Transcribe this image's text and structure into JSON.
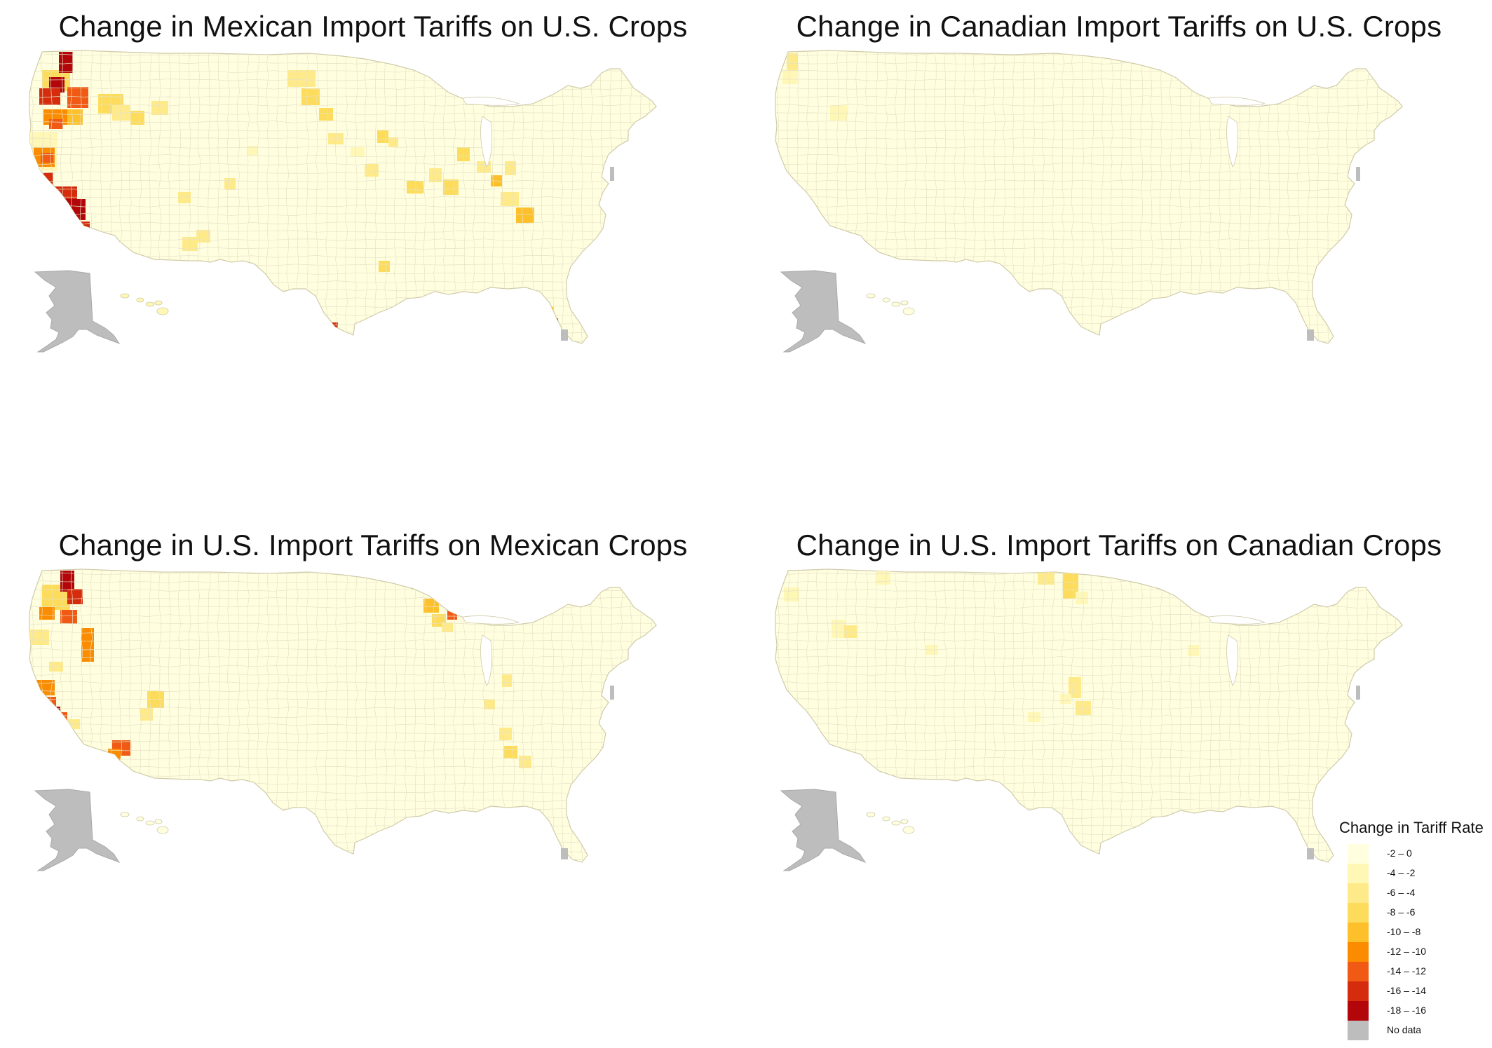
{
  "maps": [
    {
      "title": "Change in Mexican Import Tariffs on U.S. Crops"
    },
    {
      "title": "Change in Canadian Import Tariffs on U.S. Crops"
    },
    {
      "title": "Change in U.S. Import Tariffs on Mexican Crops"
    },
    {
      "title": "Change in U.S. Import Tariffs on Canadian Crops"
    }
  ],
  "legend": {
    "title": "Change in Tariff Rate",
    "items": [
      {
        "label": "-2 – 0",
        "color": "#FFFFE0"
      },
      {
        "label": "-4 – -2",
        "color": "#FFF7B6"
      },
      {
        "label": "-6 – -4",
        "color": "#FFEA8A"
      },
      {
        "label": "-8 – -6",
        "color": "#FDDC5C"
      },
      {
        "label": "-10 – -8",
        "color": "#FDC02A"
      },
      {
        "label": "-12 – -10",
        "color": "#FB8C00"
      },
      {
        "label": "-14 – -12",
        "color": "#F05A14"
      },
      {
        "label": "-16 – -14",
        "color": "#D42C0C"
      },
      {
        "label": "-18 – -16",
        "color": "#B2060A"
      },
      {
        "label": "No data",
        "color": "#BDBDBD"
      }
    ]
  },
  "colors": {
    "base": "#FFFFE0",
    "border": "#E6E2C6",
    "no_data": "#BDBDBD"
  }
}
